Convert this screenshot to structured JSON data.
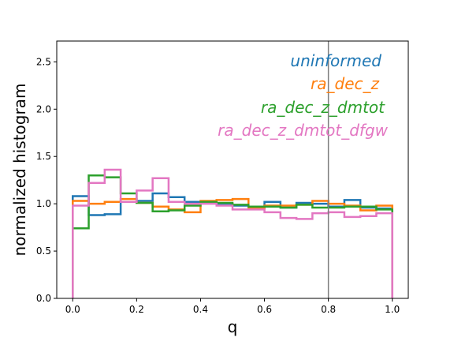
{
  "chart_data": {
    "type": "histogram",
    "xlabel": "q",
    "ylabel": "normalized histogram",
    "xlim": [
      -0.05,
      1.05
    ],
    "ylim": [
      0.0,
      2.72
    ],
    "xticks": [
      "0.0",
      "0.2",
      "0.4",
      "0.6",
      "0.8",
      "1.0"
    ],
    "yticks": [
      "0.0",
      "0.5",
      "1.0",
      "1.5",
      "2.0",
      "2.5"
    ],
    "xtick_values": [
      0.0,
      0.2,
      0.4,
      0.6,
      0.8,
      1.0
    ],
    "ytick_values": [
      0.0,
      0.5,
      1.0,
      1.5,
      2.0,
      2.5
    ],
    "vline_x": 0.8,
    "vline_color": "#7f7f7f",
    "grid": false,
    "legend_placement": "top-right (text labels colored by series)",
    "bin_edges": [
      0.0,
      0.05,
      0.1,
      0.15,
      0.2,
      0.25,
      0.3,
      0.35,
      0.4,
      0.45,
      0.5,
      0.55,
      0.6,
      0.65,
      0.7,
      0.75,
      0.8,
      0.85,
      0.9,
      0.95,
      1.0
    ],
    "series": [
      {
        "name": "uninformed",
        "color": "#1f77b4",
        "values": [
          1.08,
          0.88,
          0.89,
          1.02,
          1.03,
          1.11,
          1.07,
          1.02,
          1.01,
          1.0,
          0.98,
          0.96,
          1.02,
          0.96,
          1.01,
          1.0,
          0.97,
          1.04,
          0.96,
          0.95
        ]
      },
      {
        "name": "ra_dec_z",
        "color": "#ff7f0e",
        "values": [
          1.03,
          1.0,
          1.02,
          1.05,
          1.01,
          0.97,
          0.94,
          0.91,
          1.03,
          1.04,
          1.05,
          0.95,
          0.98,
          0.98,
          0.99,
          1.03,
          1.0,
          0.98,
          0.93,
          0.98
        ]
      },
      {
        "name": "ra_dec_z_dmtot",
        "color": "#2ca02c",
        "values": [
          0.74,
          1.3,
          1.28,
          1.11,
          1.01,
          0.92,
          0.93,
          0.98,
          1.02,
          1.01,
          0.99,
          0.97,
          0.97,
          0.96,
          0.99,
          0.96,
          0.96,
          0.97,
          0.97,
          0.94
        ]
      },
      {
        "name": "ra_dec_z_dmtot_dfgw",
        "color": "#e377c2",
        "values": [
          0.98,
          1.22,
          1.36,
          1.02,
          1.14,
          1.27,
          1.02,
          1.0,
          1.0,
          0.98,
          0.94,
          0.94,
          0.91,
          0.85,
          0.84,
          0.9,
          0.91,
          0.86,
          0.87,
          0.9
        ]
      }
    ]
  }
}
